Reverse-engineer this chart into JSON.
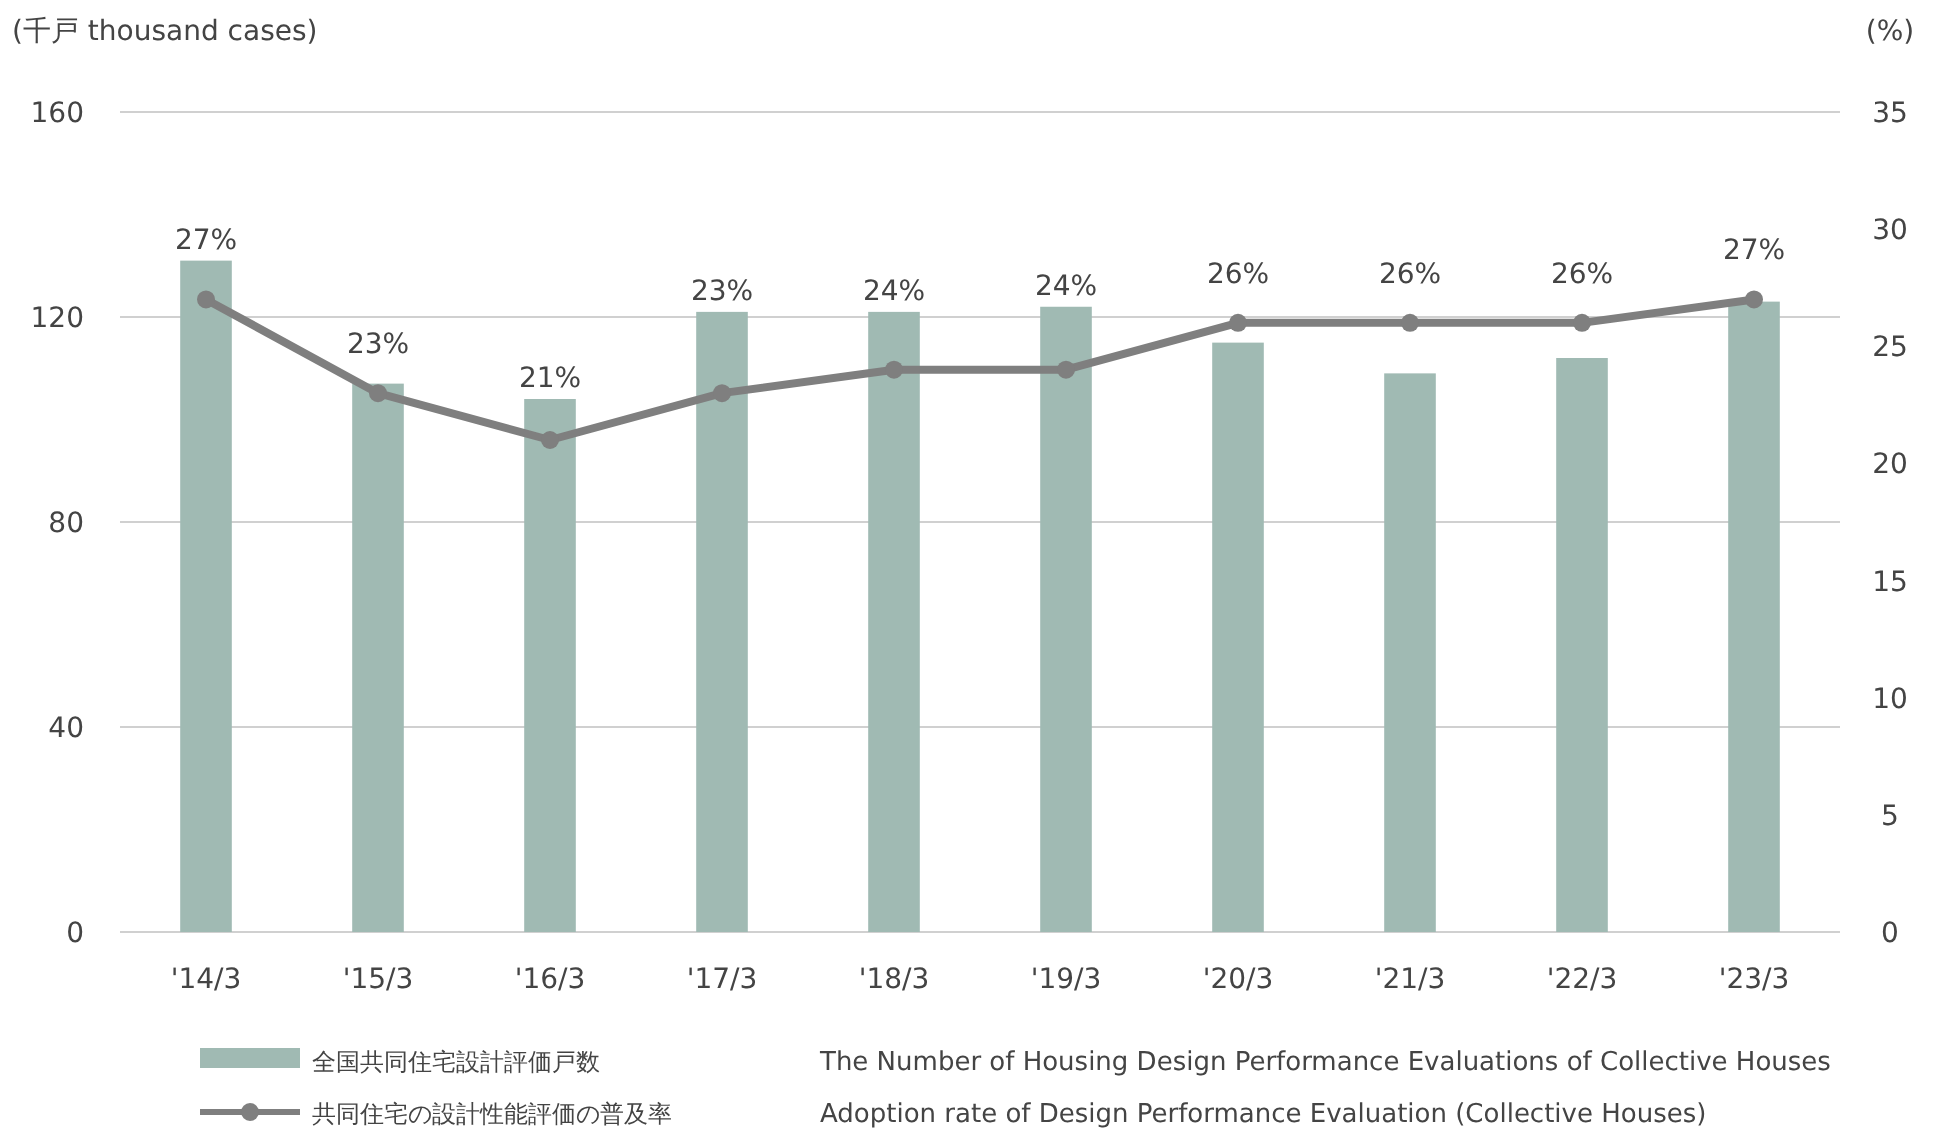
{
  "chart_data": {
    "type": "bar",
    "ylabel": "(千戸 thousand cases)",
    "y2label": "(%)",
    "categories": [
      "'14/3",
      "'15/3",
      "'16/3",
      "'17/3",
      "'18/3",
      "'19/3",
      "'20/3",
      "'21/3",
      "'22/3",
      "'23/3"
    ],
    "series": [
      {
        "name": "全国共同住宅設計評価戸数",
        "color": "#a0bab3",
        "values": [
          131,
          107,
          104,
          121,
          121,
          122,
          115,
          109,
          112,
          123
        ]
      },
      {
        "name": "共同住宅の設計性能評価の普及率",
        "type": "line",
        "axis": "y2",
        "color": "#7f7f7f",
        "marker": "circle",
        "values": [
          27,
          23,
          21,
          23,
          24,
          24,
          26,
          26,
          26,
          27
        ],
        "value_labels": [
          "27%",
          "23%",
          "21%",
          "23%",
          "24%",
          "24%",
          "26%",
          "26%",
          "26%",
          "27%"
        ]
      }
    ],
    "ylim": [
      0,
      160
    ],
    "yticks": [
      0,
      40,
      80,
      120,
      160
    ],
    "y2lim": [
      0,
      35
    ],
    "y2ticks": [
      0,
      5,
      10,
      15,
      20,
      25,
      30,
      35
    ],
    "grid": "y",
    "legend": "bottom",
    "annotations": [
      "The Number of Housing Design Performance Evaluations of Collective Houses",
      "Adoption rate of Design Performance Evaluation (Collective Houses)"
    ]
  }
}
